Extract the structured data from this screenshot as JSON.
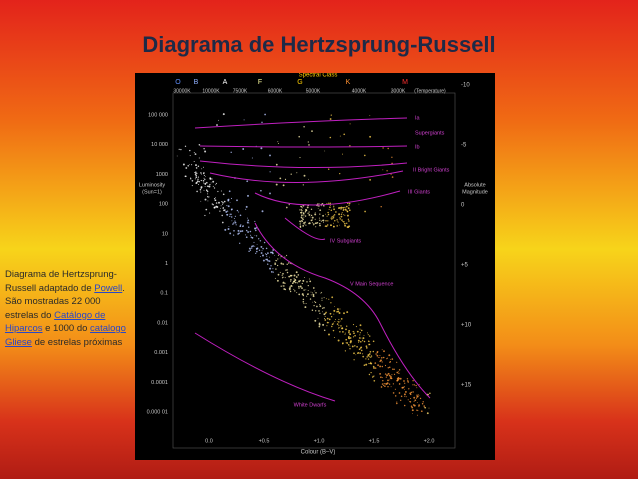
{
  "title": "Diagrama de Hertzsprung-Russell",
  "caption": [
    {
      "text": "Diagrama de Hertzsprung-Russell adaptado de "
    },
    {
      "link": "Powell"
    },
    {
      "text": ". São mostradas 22 000 estrelas do "
    },
    {
      "link": "Catálogo de Hiparcos"
    },
    {
      "text": " e 1000 do "
    },
    {
      "link": "catalogo Gliese"
    },
    {
      "text": " de estrelas próximas"
    }
  ],
  "figure": {
    "spectral_label": "Spectral Class",
    "spectral_classes": [
      "O",
      "B",
      "A",
      "F",
      "G",
      "K",
      "M"
    ],
    "temperatures": [
      "30000K",
      "10000K",
      "7500K",
      "6000K",
      "5000K",
      "4000K",
      "3000K",
      "(Temperature)"
    ],
    "luminosity_label": [
      "Luminosity",
      "(Sun=1)"
    ],
    "luminosity_ticks": [
      "100 000",
      "10 000",
      "1000",
      "100",
      "10",
      "1",
      "0.1",
      "0.01",
      "0.001",
      "0.0001",
      "0.000 01"
    ],
    "magnitude_label": [
      "Absolute",
      "Magnitude"
    ],
    "magnitude_ticks": [
      "-10",
      "-5",
      "0",
      "+5",
      "+10",
      "+15"
    ],
    "colour_ticks": [
      "0.0",
      "+0.5",
      "+1.0",
      "+1.5",
      "+2.0"
    ],
    "colour_label": "Colour (B–V)",
    "branches": [
      "Ia",
      "Supergiants",
      "Ib",
      "II Bright Giants",
      "III   Giants",
      "IV  Subgiants",
      "V  Main Sequence",
      "White Dwarfs"
    ]
  }
}
